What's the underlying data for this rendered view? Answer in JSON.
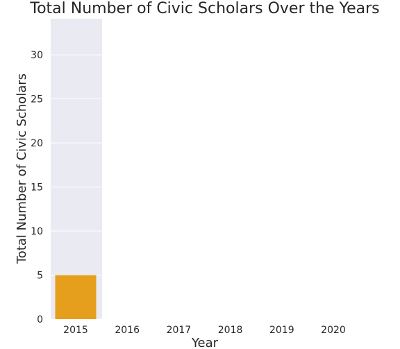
{
  "chart_data": {
    "type": "bar",
    "title": "Total Number of Civic Scholars Over the Years",
    "xlabel": "Year",
    "ylabel": "Total Number of Civic Scholars",
    "categories": [
      "2015",
      "2016",
      "2017",
      "2018",
      "2019",
      "2020"
    ],
    "values": [
      5,
      null,
      null,
      null,
      null,
      null
    ],
    "ylim": [
      0,
      34.1
    ],
    "yticks": [
      0,
      5,
      10,
      15,
      20,
      25,
      30
    ],
    "grid": true,
    "bar_color": "#e69f1d",
    "plot_background": "#eaeaf2",
    "gridline_color": "#ffffff"
  }
}
